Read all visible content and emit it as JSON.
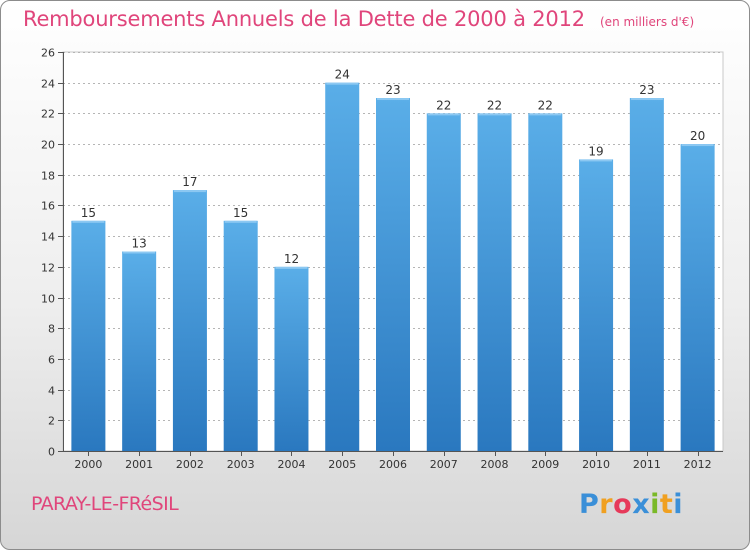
{
  "header": {
    "title": "Remboursements Annuels de la Dette de 2000 à 2012",
    "units": "(en milliers d'€)"
  },
  "footer": {
    "city": "PARAY-LE-FRéSIL",
    "logo": {
      "letters": [
        "P",
        "r",
        "o",
        "x",
        "i",
        "t",
        "i"
      ],
      "colors": [
        "#3a8fd8",
        "#f0a020",
        "#e63a5a",
        "#3a8fd8",
        "#7ab928",
        "#f0a020",
        "#3a8fd8"
      ]
    }
  },
  "chart_data": {
    "type": "bar",
    "categories": [
      "2000",
      "2001",
      "2002",
      "2003",
      "2004",
      "2005",
      "2006",
      "2007",
      "2008",
      "2009",
      "2010",
      "2011",
      "2012"
    ],
    "values": [
      15,
      13,
      17,
      15,
      12,
      24,
      23,
      22,
      22,
      22,
      19,
      23,
      20
    ],
    "ylim": [
      0,
      26
    ],
    "yticks": [
      0,
      2,
      4,
      6,
      8,
      10,
      12,
      14,
      16,
      18,
      20,
      22,
      24,
      26
    ],
    "grid": true,
    "bar_color": "#3f94d6",
    "data_labels": true
  }
}
